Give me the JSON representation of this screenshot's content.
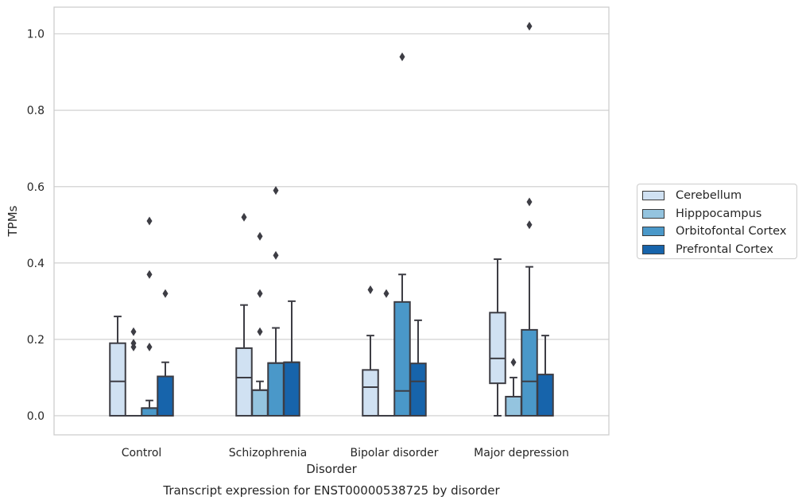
{
  "chart_data": {
    "type": "boxplot",
    "title": "Transcript expression for ENST00000538725 by disorder",
    "xlabel": "Disorder",
    "ylabel": "TPMs",
    "ylim": [
      -0.05,
      1.07
    ],
    "yticks": [
      0.0,
      0.2,
      0.4,
      0.6,
      0.8,
      1.0
    ],
    "ytick_labels": [
      "0.0",
      "0.2",
      "0.4",
      "0.6",
      "0.8",
      "1.0"
    ],
    "grid": true,
    "legend_position": "right",
    "categories": [
      "Control",
      "Schizophrenia",
      "Bipolar disorder",
      "Major depression"
    ],
    "series": [
      {
        "name": "Cerebellum",
        "color": "#d0e1f2",
        "boxes": [
          {
            "q1": 0.0,
            "median": 0.09,
            "q3": 0.19,
            "whisker_low": 0.0,
            "whisker_high": 0.26,
            "outliers": []
          },
          {
            "q1": 0.0,
            "median": 0.1,
            "q3": 0.177,
            "whisker_low": 0.0,
            "whisker_high": 0.29,
            "outliers": [
              0.52
            ]
          },
          {
            "q1": 0.0,
            "median": 0.075,
            "q3": 0.12,
            "whisker_low": 0.0,
            "whisker_high": 0.21,
            "outliers": [
              0.33
            ]
          },
          {
            "q1": 0.085,
            "median": 0.15,
            "q3": 0.27,
            "whisker_low": 0.0,
            "whisker_high": 0.41,
            "outliers": []
          }
        ]
      },
      {
        "name": "Hipppocampus",
        "color": "#94c4df",
        "boxes": [
          {
            "q1": 0.0,
            "median": 0.0,
            "q3": 0.0,
            "whisker_low": 0.0,
            "whisker_high": 0.0,
            "outliers": [
              0.18,
              0.19,
              0.22
            ]
          },
          {
            "q1": 0.0,
            "median": 0.067,
            "q3": 0.067,
            "whisker_low": 0.0,
            "whisker_high": 0.09,
            "outliers": [
              0.22,
              0.32,
              0.47
            ]
          },
          {
            "q1": 0.0,
            "median": 0.0,
            "q3": 0.0,
            "whisker_low": 0.0,
            "whisker_high": 0.0,
            "outliers": [
              0.32
            ]
          },
          {
            "q1": 0.0,
            "median": 0.05,
            "q3": 0.05,
            "whisker_low": 0.0,
            "whisker_high": 0.1,
            "outliers": [
              0.14
            ]
          }
        ]
      },
      {
        "name": "Orbitofontal Cortex",
        "color": "#4a98c9",
        "boxes": [
          {
            "q1": 0.0,
            "median": 0.02,
            "q3": 0.02,
            "whisker_low": 0.0,
            "whisker_high": 0.04,
            "outliers": [
              0.18,
              0.37,
              0.51
            ]
          },
          {
            "q1": 0.0,
            "median": 0.138,
            "q3": 0.138,
            "whisker_low": 0.0,
            "whisker_high": 0.23,
            "outliers": [
              0.42,
              0.59
            ]
          },
          {
            "q1": 0.0,
            "median": 0.065,
            "q3": 0.298,
            "whisker_low": 0.0,
            "whisker_high": 0.37,
            "outliers": [
              0.94
            ]
          },
          {
            "q1": 0.0,
            "median": 0.09,
            "q3": 0.225,
            "whisker_low": 0.0,
            "whisker_high": 0.39,
            "outliers": [
              0.5,
              0.56,
              1.02
            ]
          }
        ]
      },
      {
        "name": "Prefrontal Cortex",
        "color": "#1764ab",
        "boxes": [
          {
            "q1": 0.0,
            "median": 0.0,
            "q3": 0.103,
            "whisker_low": 0.0,
            "whisker_high": 0.14,
            "outliers": [
              0.32
            ]
          },
          {
            "q1": 0.0,
            "median": 0.14,
            "q3": 0.14,
            "whisker_low": 0.0,
            "whisker_high": 0.3,
            "outliers": []
          },
          {
            "q1": 0.0,
            "median": 0.09,
            "q3": 0.137,
            "whisker_low": 0.0,
            "whisker_high": 0.25,
            "outliers": []
          },
          {
            "q1": 0.0,
            "median": 0.0,
            "q3": 0.108,
            "whisker_low": 0.0,
            "whisker_high": 0.21,
            "outliers": []
          }
        ]
      }
    ]
  }
}
